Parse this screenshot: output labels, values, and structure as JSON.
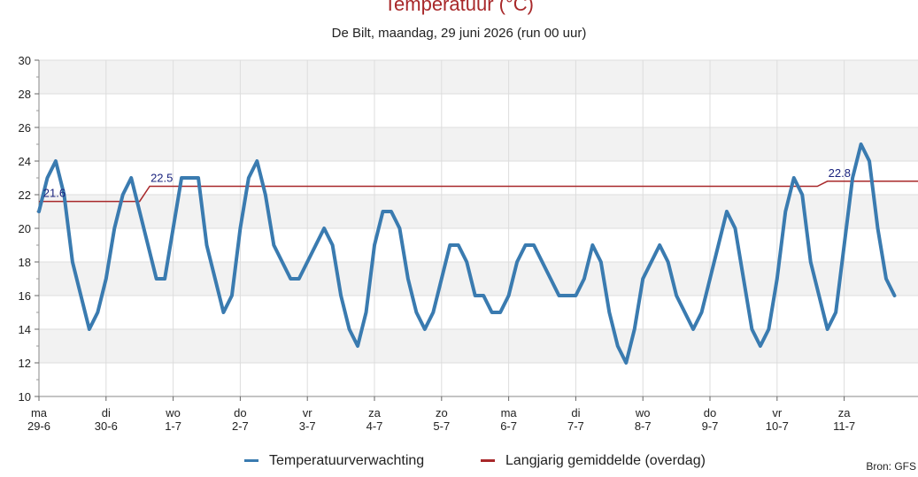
{
  "chart_data": {
    "type": "line",
    "title": "Temperatuur (°C)",
    "subtitle": "De Bilt, maandag, 29 juni 2026 (run 00 uur)",
    "source": "Bron: GFS",
    "ylim": [
      10,
      30
    ],
    "yticks": [
      10,
      12,
      14,
      16,
      18,
      20,
      22,
      24,
      26,
      28,
      30
    ],
    "xlim": [
      0,
      13.1
    ],
    "grid": true,
    "legend_position": "bottom",
    "x_ticks": [
      {
        "x": 0,
        "day": "ma",
        "date": "29-6"
      },
      {
        "x": 1,
        "day": "di",
        "date": "30-6"
      },
      {
        "x": 2,
        "day": "wo",
        "date": "1-7"
      },
      {
        "x": 3,
        "day": "do",
        "date": "2-7"
      },
      {
        "x": 4,
        "day": "vr",
        "date": "3-7"
      },
      {
        "x": 5,
        "day": "za",
        "date": "4-7"
      },
      {
        "x": 6,
        "day": "zo",
        "date": "5-7"
      },
      {
        "x": 7,
        "day": "ma",
        "date": "6-7"
      },
      {
        "x": 8,
        "day": "di",
        "date": "7-7"
      },
      {
        "x": 9,
        "day": "wo",
        "date": "8-7"
      },
      {
        "x": 10,
        "day": "do",
        "date": "9-7"
      },
      {
        "x": 11,
        "day": "vr",
        "date": "10-7"
      },
      {
        "x": 12,
        "day": "za",
        "date": "11-7"
      }
    ],
    "series": [
      {
        "name": "Temperatuurverwachting",
        "color": "#3a7bb0",
        "step": 0.125,
        "values": [
          21,
          23,
          24,
          22,
          18,
          16,
          14,
          15,
          17,
          20,
          22,
          23,
          21,
          19,
          17,
          17,
          20,
          23,
          23,
          23,
          19,
          17,
          15,
          16,
          20,
          23,
          24,
          22,
          19,
          18,
          17,
          17,
          18,
          19,
          20,
          19,
          16,
          14,
          13,
          15,
          19,
          21,
          21,
          20,
          17,
          15,
          14,
          15,
          17,
          19,
          19,
          18,
          16,
          16,
          15,
          15,
          16,
          18,
          19,
          19,
          18,
          17,
          16,
          16,
          16,
          17,
          19,
          18,
          15,
          13,
          12,
          14,
          17,
          18,
          19,
          18,
          16,
          15,
          14,
          15,
          17,
          19,
          21,
          20,
          17,
          14,
          13,
          14,
          17,
          21,
          23,
          22,
          18,
          16,
          14,
          15,
          19,
          23,
          25,
          24,
          20,
          17,
          16
        ]
      },
      {
        "name": "Langjarig gemiddelde (overdag)",
        "color": "#a8282a",
        "points": [
          [
            0,
            21.6
          ],
          [
            1.5,
            21.6
          ],
          [
            1.65,
            22.5
          ],
          [
            11.6,
            22.5
          ],
          [
            11.75,
            22.8
          ],
          [
            13.1,
            22.8
          ]
        ],
        "labels": [
          {
            "x": 0.05,
            "value": "21.6"
          },
          {
            "x": 1.65,
            "value": "22.5"
          },
          {
            "x": 11.75,
            "value": "22.8"
          }
        ]
      }
    ]
  }
}
